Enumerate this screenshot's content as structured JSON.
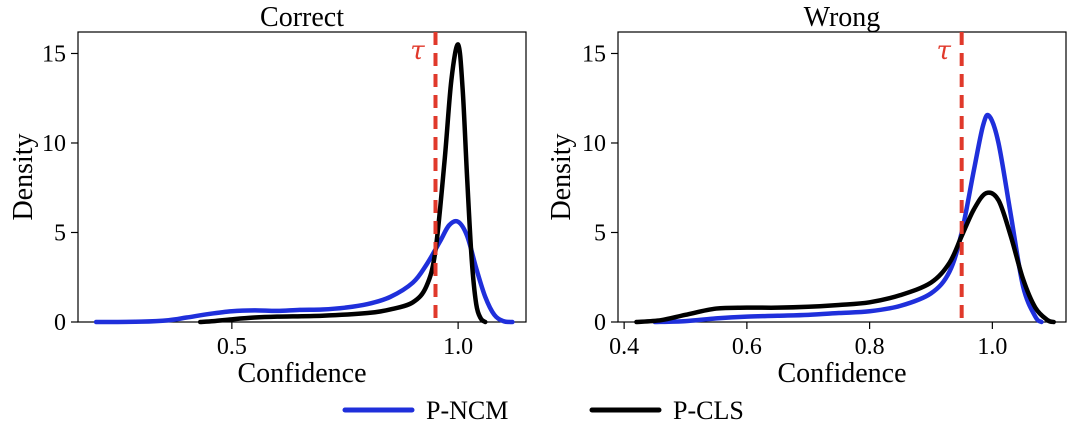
{
  "colors": {
    "p_ncm": "#1f2fdb",
    "p_cls": "#000000",
    "threshold": "#e0392b"
  },
  "legend": {
    "items": [
      "P-NCM",
      "P-CLS"
    ]
  },
  "chart_data": [
    {
      "type": "line",
      "title": "Correct",
      "xlabel": "Confidence",
      "ylabel": "Density",
      "xlim": [
        0.16,
        1.15
      ],
      "ylim": [
        0,
        16.2
      ],
      "xticks": [
        0.5,
        1.0
      ],
      "xtick_labels": [
        "0.5",
        "1.0"
      ],
      "yticks": [
        0,
        5,
        10,
        15
      ],
      "ytick_labels": [
        "0",
        "5",
        "10",
        "15"
      ],
      "threshold": {
        "label": "τ",
        "x": 0.95
      },
      "series": [
        {
          "name": "P-NCM",
          "points": [
            [
              0.2,
              0
            ],
            [
              0.3,
              0.02
            ],
            [
              0.36,
              0.1
            ],
            [
              0.4,
              0.25
            ],
            [
              0.45,
              0.45
            ],
            [
              0.5,
              0.6
            ],
            [
              0.55,
              0.65
            ],
            [
              0.6,
              0.62
            ],
            [
              0.65,
              0.68
            ],
            [
              0.7,
              0.7
            ],
            [
              0.75,
              0.8
            ],
            [
              0.8,
              1.0
            ],
            [
              0.85,
              1.4
            ],
            [
              0.9,
              2.2
            ],
            [
              0.93,
              3.2
            ],
            [
              0.96,
              4.5
            ],
            [
              0.98,
              5.4
            ],
            [
              1.0,
              5.6
            ],
            [
              1.02,
              4.8
            ],
            [
              1.04,
              3.0
            ],
            [
              1.06,
              1.4
            ],
            [
              1.08,
              0.4
            ],
            [
              1.1,
              0.05
            ],
            [
              1.12,
              0
            ]
          ]
        },
        {
          "name": "P-CLS",
          "points": [
            [
              0.43,
              0
            ],
            [
              0.46,
              0.05
            ],
            [
              0.5,
              0.15
            ],
            [
              0.55,
              0.25
            ],
            [
              0.6,
              0.3
            ],
            [
              0.7,
              0.35
            ],
            [
              0.8,
              0.5
            ],
            [
              0.85,
              0.7
            ],
            [
              0.9,
              1.1
            ],
            [
              0.93,
              2.0
            ],
            [
              0.95,
              4.0
            ],
            [
              0.97,
              9.0
            ],
            [
              0.985,
              13.5
            ],
            [
              1.0,
              15.5
            ],
            [
              1.01,
              13.0
            ],
            [
              1.02,
              8.0
            ],
            [
              1.03,
              3.5
            ],
            [
              1.04,
              1.0
            ],
            [
              1.05,
              0.2
            ],
            [
              1.06,
              0
            ]
          ]
        }
      ]
    },
    {
      "type": "line",
      "title": "Wrong",
      "xlabel": "Confidence",
      "ylabel": "Density",
      "xlim": [
        0.39,
        1.12
      ],
      "ylim": [
        0,
        16.2
      ],
      "xticks": [
        0.4,
        0.6,
        0.8,
        1.0
      ],
      "xtick_labels": [
        "0.4",
        "0.6",
        "0.8",
        "1.0"
      ],
      "yticks": [
        0,
        5,
        10,
        15
      ],
      "ytick_labels": [
        "0",
        "5",
        "10",
        "15"
      ],
      "threshold": {
        "label": "τ",
        "x": 0.95
      },
      "series": [
        {
          "name": "P-NCM",
          "points": [
            [
              0.45,
              0
            ],
            [
              0.5,
              0.05
            ],
            [
              0.55,
              0.2
            ],
            [
              0.6,
              0.3
            ],
            [
              0.65,
              0.35
            ],
            [
              0.7,
              0.4
            ],
            [
              0.75,
              0.5
            ],
            [
              0.8,
              0.6
            ],
            [
              0.85,
              0.9
            ],
            [
              0.9,
              1.6
            ],
            [
              0.93,
              2.8
            ],
            [
              0.95,
              5.0
            ],
            [
              0.97,
              8.5
            ],
            [
              0.985,
              11.0
            ],
            [
              0.995,
              11.5
            ],
            [
              1.01,
              10.0
            ],
            [
              1.03,
              6.0
            ],
            [
              1.05,
              2.0
            ],
            [
              1.07,
              0.3
            ],
            [
              1.08,
              0
            ]
          ]
        },
        {
          "name": "P-CLS",
          "points": [
            [
              0.42,
              0
            ],
            [
              0.46,
              0.1
            ],
            [
              0.5,
              0.4
            ],
            [
              0.55,
              0.75
            ],
            [
              0.6,
              0.8
            ],
            [
              0.65,
              0.8
            ],
            [
              0.7,
              0.85
            ],
            [
              0.75,
              0.95
            ],
            [
              0.8,
              1.1
            ],
            [
              0.85,
              1.5
            ],
            [
              0.9,
              2.2
            ],
            [
              0.93,
              3.3
            ],
            [
              0.95,
              4.8
            ],
            [
              0.97,
              6.3
            ],
            [
              0.99,
              7.2
            ],
            [
              1.01,
              6.8
            ],
            [
              1.03,
              4.8
            ],
            [
              1.05,
              2.4
            ],
            [
              1.07,
              0.8
            ],
            [
              1.09,
              0.1
            ],
            [
              1.1,
              0
            ]
          ]
        }
      ]
    }
  ]
}
